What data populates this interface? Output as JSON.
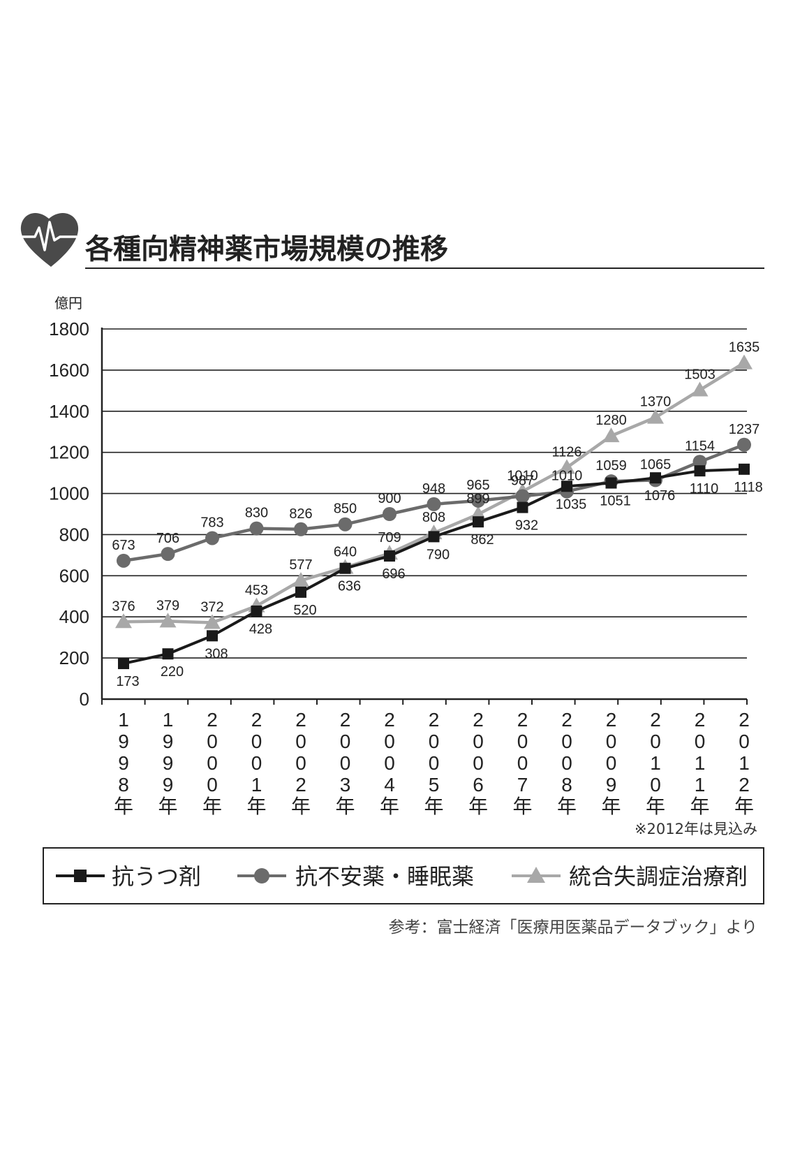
{
  "header": {
    "title": "各種向精神薬市場規模の推移",
    "icon": "heart-pulse-icon"
  },
  "chart_data": {
    "type": "line",
    "y_unit_label": "億円",
    "ylim": [
      0,
      1800
    ],
    "yticks": [
      "0",
      "200",
      "400",
      "600",
      "800",
      "1000",
      "1200",
      "1400",
      "1600",
      "1800"
    ],
    "grid": true,
    "categories": [
      "1998年",
      "1999年",
      "2000年",
      "2001年",
      "2002年",
      "2003年",
      "2004年",
      "2005年",
      "2006年",
      "2007年",
      "2008年",
      "2009年",
      "2010年",
      "2011年",
      "2012年"
    ],
    "series": [
      {
        "name": "抗うつ剤",
        "marker": "square",
        "color": "#1a1a1a",
        "values": [
          173,
          220,
          308,
          428,
          520,
          636,
          696,
          790,
          862,
          932,
          1035,
          1051,
          1076,
          1110,
          1118
        ]
      },
      {
        "name": "抗不安薬・睡眠薬",
        "marker": "circle",
        "color": "#6b6b6b",
        "values": [
          673,
          706,
          783,
          830,
          826,
          850,
          900,
          948,
          965,
          987,
          1010,
          1059,
          1065,
          1154,
          1237
        ]
      },
      {
        "name": "統合失調症治療剤",
        "marker": "triangle",
        "color": "#a8a8a8",
        "values": [
          376,
          379,
          372,
          453,
          577,
          640,
          709,
          808,
          899,
          1010,
          1126,
          1280,
          1370,
          1503,
          1635
        ]
      }
    ],
    "data_labels": [
      [
        "173",
        "220",
        "308",
        "428",
        "520",
        "636",
        "696",
        "790",
        "862",
        "932",
        "1035",
        "1051",
        "1076",
        "1110",
        "1118"
      ],
      [
        "673",
        "706",
        "783",
        "830",
        "826",
        "850",
        "900",
        "948",
        "965",
        "987",
        "1010",
        "1059",
        "1065",
        "1154",
        "1237"
      ],
      [
        "376",
        "379",
        "372",
        "453",
        "577",
        "640",
        "709",
        "808",
        "899",
        "1010",
        "1126",
        "1280",
        "1370",
        "1503",
        "1635"
      ]
    ],
    "note": "※2012年は見込み",
    "legend_position": "bottom"
  },
  "source": "参考：富士経済「医療用医薬品データブック」より"
}
